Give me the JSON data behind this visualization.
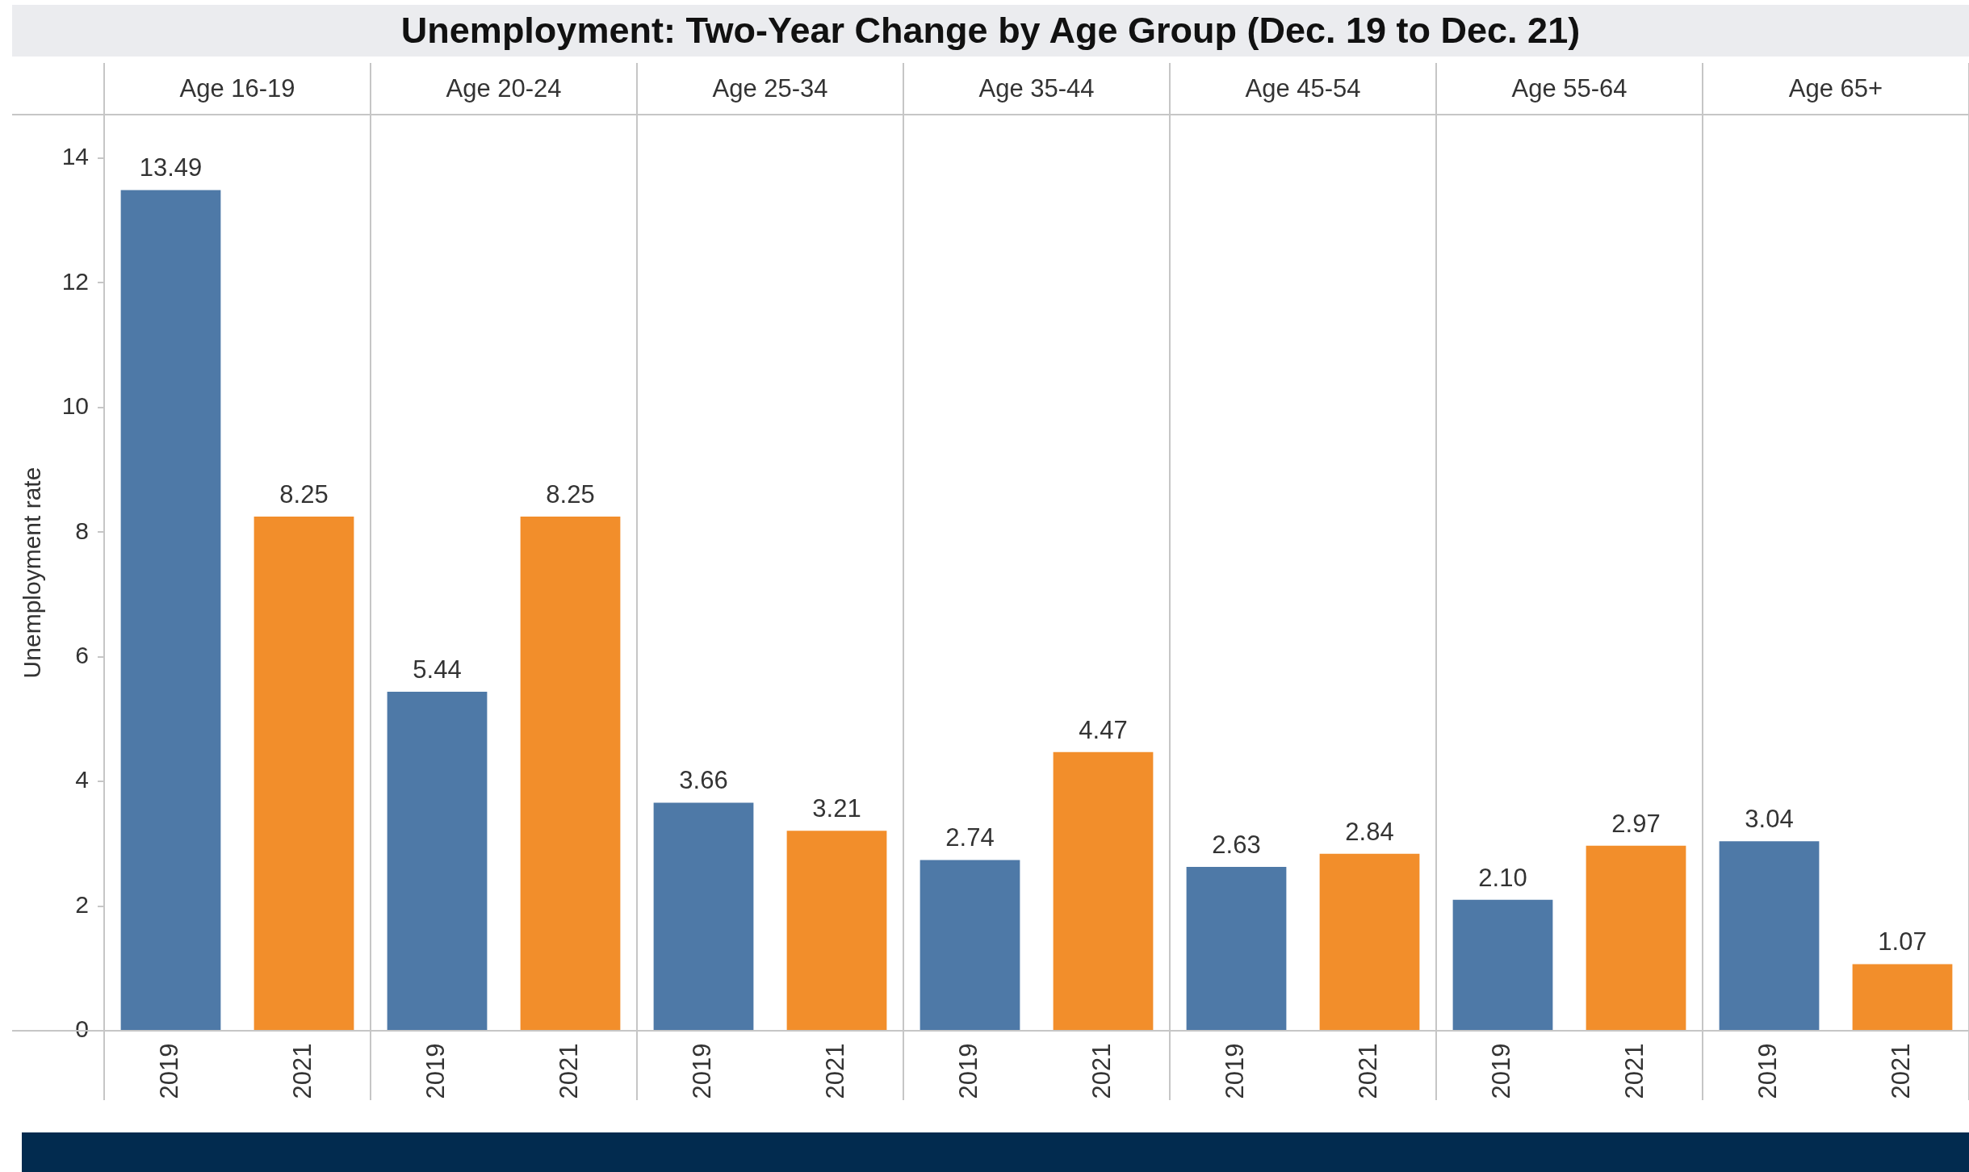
{
  "chart_data": {
    "type": "bar",
    "title": "Unemployment: Two-Year Change by Age Group (Dec. 19 to Dec. 21)",
    "ylabel": "Unemployment rate",
    "categories": [
      "Age 16-19",
      "Age 20-24",
      "Age 25-34",
      "Age 35-44",
      "Age 45-54",
      "Age 55-64",
      "Age 65+"
    ],
    "series": [
      {
        "name": "2019",
        "color": "#4e79a7",
        "values": [
          13.49,
          5.44,
          3.66,
          2.74,
          2.63,
          2.1,
          3.04
        ],
        "value_labels": [
          "13.49",
          "5.44",
          "3.66",
          "2.74",
          "2.63",
          "2.10",
          "3.04"
        ]
      },
      {
        "name": "2021",
        "color": "#f28e2b",
        "values": [
          8.25,
          8.25,
          3.21,
          4.47,
          2.84,
          2.97,
          1.07
        ],
        "value_labels": [
          "8.25",
          "8.25",
          "3.21",
          "4.47",
          "2.84",
          "2.97",
          "1.07"
        ]
      }
    ],
    "ylim": [
      0,
      14.7
    ],
    "yticks": [
      0,
      2,
      4,
      6,
      8,
      10,
      12,
      14
    ],
    "grid": "x",
    "legend": false
  }
}
